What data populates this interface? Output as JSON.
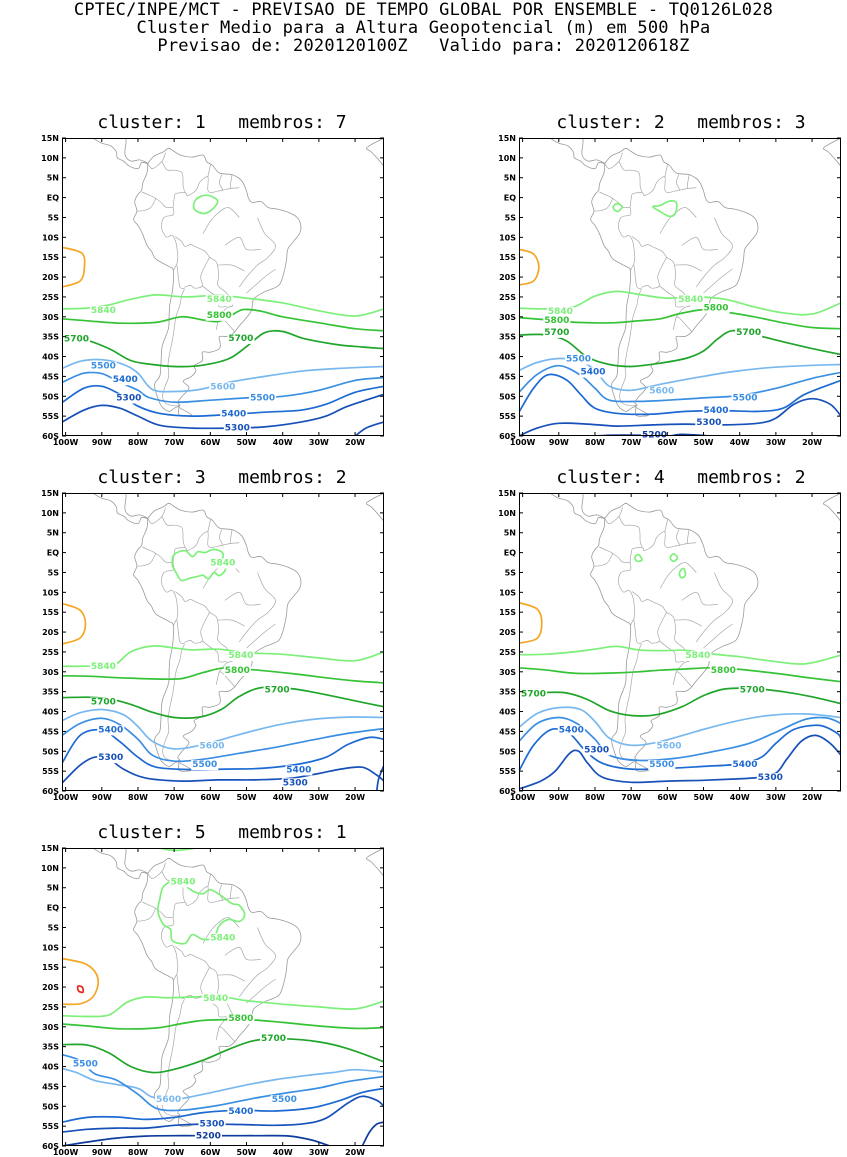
{
  "header": {
    "line1": "CPTEC/INPE/MCT - PREVISAO DE TEMPO GLOBAL POR ENSEMBLE - TQ0126L028",
    "line2": "Cluster Medio para a Altura Geopotencial (m) em 500 hPa",
    "line3": "Previsao de: 2020120100Z   Valido para: 2020120618Z"
  },
  "axes": {
    "lat_ticks": [
      "15N",
      "10N",
      "5N",
      "EQ",
      "5S",
      "10S",
      "15S",
      "20S",
      "25S",
      "30S",
      "35S",
      "40S",
      "45S",
      "50S",
      "55S",
      "60S"
    ],
    "lon_ticks": [
      "100W",
      "90W",
      "80W",
      "70W",
      "60W",
      "50W",
      "40W",
      "30W",
      "20W"
    ],
    "lon_range": [
      -101,
      -12
    ],
    "lat_range": [
      -60,
      15
    ]
  },
  "contour_colors": {
    "5200": "#0d3b9e",
    "5300": "#1650b8",
    "5400": "#1c6ad2",
    "5500": "#3b8fe2",
    "5600": "#78b8ef",
    "5700": "#1ea52a",
    "5800": "#35c335",
    "5840": "#7df07a",
    "5880": "#f5a623",
    "5920": "#e8251a"
  },
  "panels": [
    {
      "title": "cluster: 1   membros: 7",
      "labels": [
        {
          "text": "5840",
          "lon": -93,
          "lat": -28.3,
          "level": "5840"
        },
        {
          "text": "5840",
          "lon": -61,
          "lat": -25.5,
          "level": "5840"
        },
        {
          "text": "5800",
          "lon": -61,
          "lat": -29.5,
          "level": "5800"
        },
        {
          "text": "5700",
          "lon": -101,
          "lat": -35.5,
          "level": "5700"
        },
        {
          "text": "5700",
          "lon": -55,
          "lat": -35.3,
          "level": "5700"
        },
        {
          "text": "5500",
          "lon": -93,
          "lat": -42.3,
          "level": "5500"
        },
        {
          "text": "5400",
          "lon": -87,
          "lat": -45.7,
          "level": "5400"
        },
        {
          "text": "5600",
          "lon": -60,
          "lat": -47.5,
          "level": "5600"
        },
        {
          "text": "5300",
          "lon": -86,
          "lat": -50.3,
          "level": "5300"
        },
        {
          "text": "5500",
          "lon": -49,
          "lat": -50.3,
          "level": "5500"
        },
        {
          "text": "5400",
          "lon": -57,
          "lat": -54.3,
          "level": "5400"
        },
        {
          "text": "5300",
          "lon": -56,
          "lat": -57.8,
          "level": "5300"
        }
      ]
    },
    {
      "title": "cluster: 2   membros: 3",
      "labels": [
        {
          "text": "5840",
          "lon": -93,
          "lat": -28.5,
          "level": "5840"
        },
        {
          "text": "5840",
          "lon": -57,
          "lat": -25.5,
          "level": "5840"
        },
        {
          "text": "5800",
          "lon": -94,
          "lat": -30.8,
          "level": "5800"
        },
        {
          "text": "5800",
          "lon": -50,
          "lat": -27.6,
          "level": "5800"
        },
        {
          "text": "5700",
          "lon": -94,
          "lat": -33.8,
          "level": "5700"
        },
        {
          "text": "5700",
          "lon": -41,
          "lat": -33.8,
          "level": "5700"
        },
        {
          "text": "5500",
          "lon": -88,
          "lat": -40.5,
          "level": "5500"
        },
        {
          "text": "5400",
          "lon": -84,
          "lat": -43.8,
          "level": "5400"
        },
        {
          "text": "5600",
          "lon": -65,
          "lat": -48.6,
          "level": "5600"
        },
        {
          "text": "5500",
          "lon": -42,
          "lat": -50.3,
          "level": "5500"
        },
        {
          "text": "5400",
          "lon": -50,
          "lat": -53.5,
          "level": "5400"
        },
        {
          "text": "5300",
          "lon": -52,
          "lat": -56.5,
          "level": "5300"
        },
        {
          "text": "5200",
          "lon": -67,
          "lat": -59.6,
          "level": "5200"
        }
      ]
    },
    {
      "title": "cluster: 3   membros: 2",
      "labels": [
        {
          "text": "5840",
          "lon": -60,
          "lat": -2.5,
          "level": "5840"
        },
        {
          "text": "5840",
          "lon": -93,
          "lat": -28.5,
          "level": "5840"
        },
        {
          "text": "5840",
          "lon": -55,
          "lat": -25.8,
          "level": "5840"
        },
        {
          "text": "5800",
          "lon": -56,
          "lat": -29.5,
          "level": "5800"
        },
        {
          "text": "5700",
          "lon": -45,
          "lat": -34.5,
          "level": "5700"
        },
        {
          "text": "5700",
          "lon": -93,
          "lat": -37.5,
          "level": "5700"
        },
        {
          "text": "5400",
          "lon": -91,
          "lat": -44.5,
          "level": "5400"
        },
        {
          "text": "5300",
          "lon": -91,
          "lat": -51.5,
          "level": "5300"
        },
        {
          "text": "5600",
          "lon": -63,
          "lat": -48.5,
          "level": "5600"
        },
        {
          "text": "5500",
          "lon": -65,
          "lat": -53.2,
          "level": "5500"
        },
        {
          "text": "5400",
          "lon": -39,
          "lat": -54.6,
          "level": "5400"
        },
        {
          "text": "5300",
          "lon": -40,
          "lat": -57.8,
          "level": "5300"
        }
      ]
    },
    {
      "title": "cluster: 4   membros: 2",
      "labels": [
        {
          "text": "5840",
          "lon": -55,
          "lat": -25.8,
          "level": "5840"
        },
        {
          "text": "5800",
          "lon": -48,
          "lat": -29.5,
          "level": "5800"
        },
        {
          "text": "5700",
          "lon": -101,
          "lat": -35.5,
          "level": "5700"
        },
        {
          "text": "5700",
          "lon": -40,
          "lat": -34.5,
          "level": "5700"
        },
        {
          "text": "5400",
          "lon": -90,
          "lat": -44.5,
          "level": "5400"
        },
        {
          "text": "5300",
          "lon": -83,
          "lat": -49.5,
          "level": "5300"
        },
        {
          "text": "5600",
          "lon": -63,
          "lat": -48.5,
          "level": "5600"
        },
        {
          "text": "5500",
          "lon": -65,
          "lat": -53.2,
          "level": "5500"
        },
        {
          "text": "5400",
          "lon": -42,
          "lat": -53.2,
          "level": "5400"
        },
        {
          "text": "5300",
          "lon": -35,
          "lat": -56.5,
          "level": "5300"
        }
      ]
    },
    {
      "title": "cluster: 5   membros: 1",
      "labels": [
        {
          "text": "5840",
          "lon": -71,
          "lat": 6.6,
          "level": "5840"
        },
        {
          "text": "5840",
          "lon": -60,
          "lat": -7.5,
          "level": "5840"
        },
        {
          "text": "5840",
          "lon": -62,
          "lat": -22.7,
          "level": "5840"
        },
        {
          "text": "5800",
          "lon": -55,
          "lat": -27.8,
          "level": "5800"
        },
        {
          "text": "5700",
          "lon": -46,
          "lat": -32.8,
          "level": "5700"
        },
        {
          "text": "5500",
          "lon": -98,
          "lat": -39.2,
          "level": "5500"
        },
        {
          "text": "5600",
          "lon": -75,
          "lat": -48.2,
          "level": "5600"
        },
        {
          "text": "5500",
          "lon": -43,
          "lat": -48.2,
          "level": "5500"
        },
        {
          "text": "5400",
          "lon": -55,
          "lat": -51.2,
          "level": "5400"
        },
        {
          "text": "5300",
          "lon": -63,
          "lat": -54.3,
          "level": "5300"
        },
        {
          "text": "5200",
          "lon": -64,
          "lat": -57.3,
          "level": "5200"
        }
      ]
    }
  ]
}
